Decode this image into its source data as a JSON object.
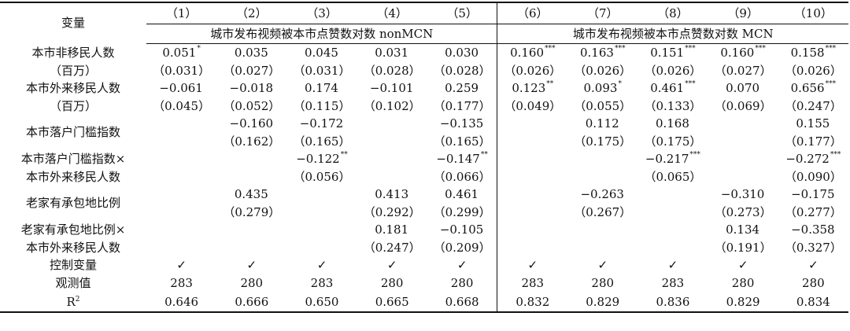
{
  "header": {
    "var_label": "变量",
    "columns": [
      "（1）",
      "（2）",
      "（3）",
      "（4）",
      "（5）",
      "（6）",
      "（7）",
      "（8）",
      "（9）",
      "（10）"
    ],
    "group_nonmcn": "城市发布视频被本市点赞数对数 nonMCN",
    "group_mcn": "城市发布视频被本市点赞数对数 MCN"
  },
  "rows": [
    {
      "label1": "本市非移民人数",
      "label2": "（百万）",
      "coef": [
        "0.051",
        "0.035",
        "0.045",
        "0.031",
        "0.030",
        "0.160",
        "0.163",
        "0.151",
        "0.160",
        "0.158"
      ],
      "stars": [
        "*",
        "",
        "",
        "",
        "",
        "***",
        "***",
        "***",
        "***",
        "***"
      ],
      "se": [
        "（0.031）",
        "（0.027）",
        "（0.031）",
        "（0.028）",
        "（0.028）",
        "（0.026）",
        "（0.026）",
        "（0.026）",
        "（0.027）",
        "（0.026）"
      ]
    },
    {
      "label1": "本市外来移民人数",
      "label2": "（百万）",
      "coef": [
        "−0.061",
        "−0.018",
        "0.174",
        "−0.101",
        "0.259",
        "0.123",
        "0.093",
        "0.461",
        "0.070",
        "0.656"
      ],
      "stars": [
        "",
        "",
        "",
        "",
        "",
        "**",
        "*",
        "***",
        "",
        "***"
      ],
      "se": [
        "（0.045）",
        "（0.052）",
        "（0.115）",
        "（0.102）",
        "（0.177）",
        "（0.049）",
        "（0.055）",
        "（0.133）",
        "（0.069）",
        "（0.247）"
      ]
    },
    {
      "label1": "本市落户门槛指数",
      "label2": "",
      "coef": [
        "",
        "−0.160",
        "−0.172",
        "",
        "−0.135",
        "",
        "0.112",
        "0.168",
        "",
        "0.155"
      ],
      "stars": [
        "",
        "",
        "",
        "",
        "",
        "",
        "",
        "",
        "",
        ""
      ],
      "se": [
        "",
        "（0.162）",
        "（0.165）",
        "",
        "（0.165）",
        "",
        "（0.175）",
        "（0.175）",
        "",
        "（0.177）"
      ]
    },
    {
      "label1": "本市落户门槛指数×",
      "label2": "本市外来移民人数",
      "coef": [
        "",
        "",
        "−0.122",
        "",
        "−0.147",
        "",
        "",
        "−0.217",
        "",
        "−0.272"
      ],
      "stars": [
        "",
        "",
        "**",
        "",
        "**",
        "",
        "",
        "***",
        "",
        "***"
      ],
      "se": [
        "",
        "",
        "（0.056）",
        "",
        "（0.066）",
        "",
        "",
        "（0.065）",
        "",
        "（0.090）"
      ]
    },
    {
      "label1": "老家有承包地比例",
      "label2": "",
      "coef": [
        "",
        "0.435",
        "",
        "0.413",
        "0.461",
        "",
        "−0.263",
        "",
        "−0.310",
        "−0.175"
      ],
      "stars": [
        "",
        "",
        "",
        "",
        "",
        "",
        "",
        "",
        "",
        ""
      ],
      "se": [
        "",
        "（0.279）",
        "",
        "（0.292）",
        "（0.299）",
        "",
        "（0.267）",
        "",
        "（0.273）",
        "（0.277）"
      ]
    },
    {
      "label1": "老家有承包地比例×",
      "label2": "本市外来移民人数",
      "coef": [
        "",
        "",
        "",
        "0.181",
        "−0.105",
        "",
        "",
        "",
        "0.134",
        "−0.358"
      ],
      "stars": [
        "",
        "",
        "",
        "",
        "",
        "",
        "",
        "",
        "",
        ""
      ],
      "se": [
        "",
        "",
        "",
        "（0.247）",
        "（0.209）",
        "",
        "",
        "",
        "（0.191）",
        "（0.327）"
      ]
    }
  ],
  "controls": {
    "label": "控制变量",
    "values": [
      "✓",
      "✓",
      "✓",
      "✓",
      "✓",
      "✓",
      "✓",
      "✓",
      "✓",
      "✓"
    ]
  },
  "observations": {
    "label": "观测值",
    "values": [
      "283",
      "280",
      "283",
      "280",
      "280",
      "283",
      "280",
      "283",
      "280",
      "280"
    ]
  },
  "r2": {
    "label": "R",
    "label_sup": "2",
    "values": [
      "0.646",
      "0.666",
      "0.650",
      "0.665",
      "0.668",
      "0.832",
      "0.829",
      "0.836",
      "0.829",
      "0.834"
    ]
  }
}
